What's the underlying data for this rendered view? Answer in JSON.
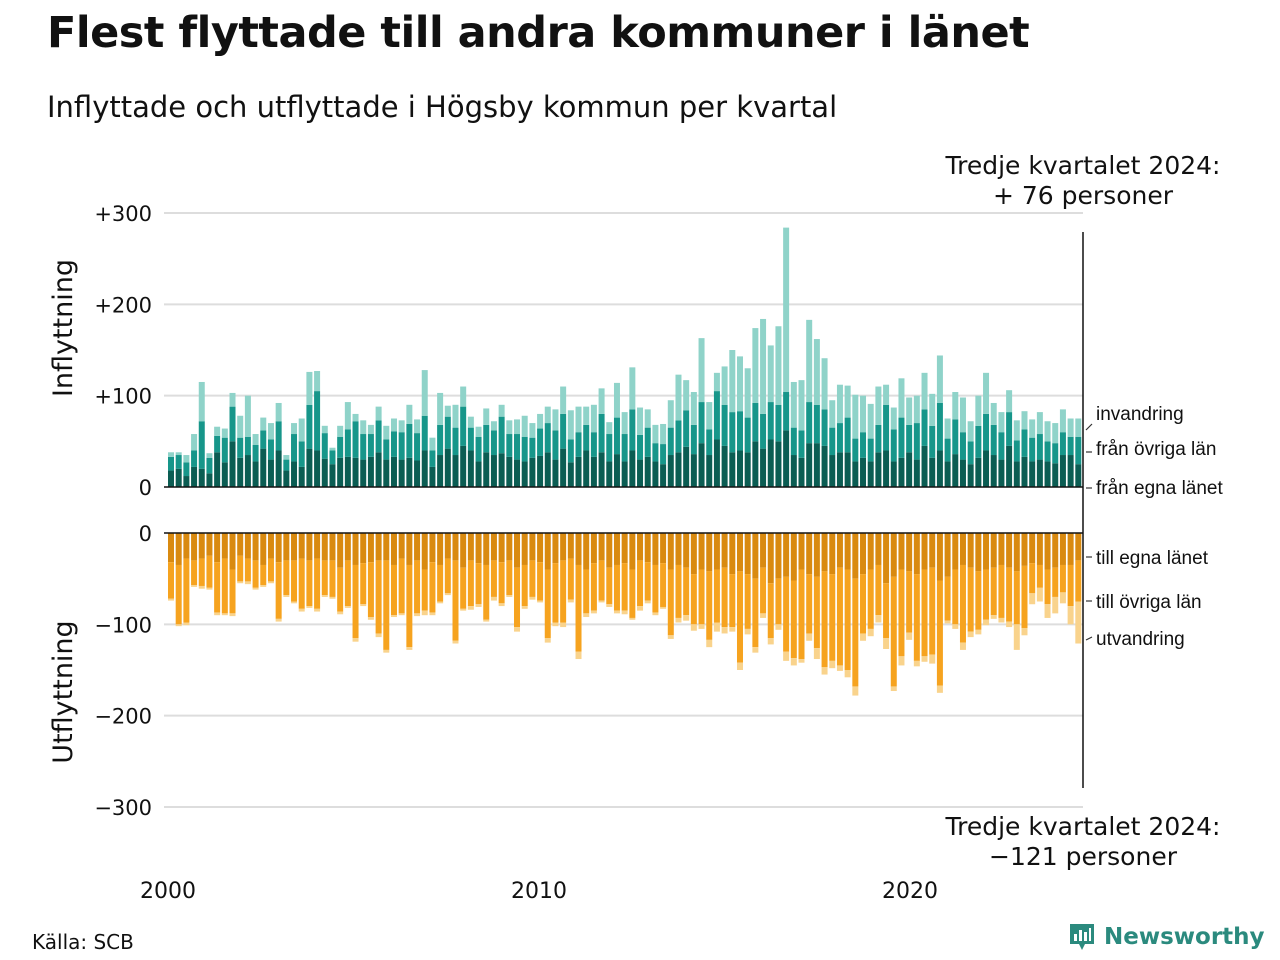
{
  "title": "Flest flyttade till andra kommuner i länet",
  "subtitle": "Inflyttade och utflyttade i Högsby kommun per kvartal",
  "source": "Källa: SCB",
  "brand": "Newsworthy",
  "brand_icon": "bar-chart-logo-icon",
  "colors": {
    "in_own": "#0b5d53",
    "in_other": "#17968a",
    "in_immig": "#8fd3c9",
    "out_own": "#d98a10",
    "out_other": "#f6a31f",
    "out_emig": "#f9d38c",
    "grid": "#dddddd"
  },
  "chart_data": {
    "type": "bar",
    "stacked": true,
    "diverging": true,
    "period": "quarterly",
    "x_ticks": [
      "2000",
      "2010",
      "2020"
    ],
    "top_panel": {
      "ylabel": "Inflyttning",
      "ylim": [
        0,
        300
      ],
      "y_ticks": [
        "0",
        "+100",
        "+200",
        "+300"
      ],
      "annotation_line1": "Tredje kvartalet 2024:",
      "annotation_line2": "+ 76 personer",
      "series": [
        {
          "name": "från egna länet",
          "values": [
            18,
            20,
            12,
            22,
            20,
            15,
            38,
            27,
            50,
            32,
            35,
            28,
            42,
            30,
            40,
            18,
            28,
            22,
            42,
            40,
            31,
            25,
            32,
            33,
            32,
            30,
            33,
            38,
            30,
            33,
            30,
            32,
            29,
            40,
            22,
            35,
            42,
            35,
            45,
            40,
            28,
            38,
            35,
            37,
            33,
            30,
            28,
            32,
            34,
            38,
            30,
            42,
            27,
            33,
            40,
            33,
            38,
            28,
            36,
            28,
            40,
            30,
            33,
            28,
            25,
            35,
            38,
            44,
            36,
            48,
            35,
            52,
            45,
            38,
            40,
            38,
            50,
            42,
            52,
            50,
            62,
            35,
            32,
            48,
            48,
            45,
            35,
            38,
            38,
            28,
            32,
            28,
            38,
            40,
            28,
            32,
            38,
            30,
            45,
            32,
            40,
            28,
            36,
            30,
            25,
            32,
            40,
            35,
            30,
            45,
            28,
            33,
            28,
            30,
            28,
            26,
            35,
            35,
            25
          ]
        },
        {
          "name": "från övriga län",
          "values": [
            15,
            15,
            15,
            18,
            52,
            17,
            18,
            27,
            38,
            22,
            20,
            18,
            20,
            22,
            32,
            12,
            30,
            28,
            48,
            65,
            28,
            15,
            23,
            30,
            40,
            28,
            25,
            35,
            22,
            28,
            30,
            37,
            30,
            38,
            18,
            33,
            35,
            30,
            43,
            25,
            27,
            30,
            27,
            40,
            25,
            28,
            27,
            22,
            30,
            32,
            32,
            38,
            25,
            27,
            28,
            27,
            42,
            30,
            40,
            30,
            45,
            27,
            32,
            20,
            22,
            30,
            35,
            40,
            32,
            45,
            28,
            53,
            45,
            44,
            43,
            38,
            42,
            38,
            41,
            40,
            42,
            30,
            30,
            45,
            42,
            40,
            30,
            32,
            38,
            25,
            28,
            25,
            30,
            50,
            35,
            44,
            30,
            40,
            40,
            35,
            52,
            25,
            38,
            30,
            25,
            35,
            40,
            33,
            30,
            37,
            23,
            30,
            26,
            28,
            22,
            22,
            25,
            20,
            30
          ]
        },
        {
          "name": "invandring",
          "values": [
            5,
            3,
            8,
            18,
            43,
            5,
            10,
            10,
            15,
            24,
            45,
            12,
            14,
            18,
            20,
            5,
            12,
            25,
            36,
            22,
            8,
            3,
            12,
            30,
            8,
            15,
            10,
            15,
            15,
            14,
            13,
            21,
            15,
            50,
            14,
            35,
            12,
            25,
            22,
            12,
            11,
            18,
            10,
            13,
            15,
            16,
            23,
            16,
            16,
            18,
            23,
            30,
            32,
            28,
            20,
            30,
            28,
            13,
            38,
            24,
            46,
            30,
            20,
            20,
            22,
            30,
            50,
            33,
            36,
            70,
            30,
            20,
            42,
            68,
            60,
            54,
            82,
            104,
            62,
            86,
            180,
            50,
            55,
            90,
            72,
            56,
            30,
            42,
            35,
            48,
            40,
            38,
            42,
            22,
            24,
            43,
            30,
            30,
            40,
            35,
            52,
            22,
            30,
            38,
            22,
            33,
            45,
            24,
            22,
            24,
            22,
            20,
            20,
            24,
            22,
            22,
            25,
            20,
            20
          ]
        }
      ]
    },
    "bottom_panel": {
      "ylabel": "Utflyttning",
      "ylim": [
        -300,
        0
      ],
      "y_ticks": [
        "0",
        "−100",
        "−200",
        "−300"
      ],
      "annotation_line1": "Tredje kvartalet 2024:",
      "annotation_line2": "−121 personer",
      "series": [
        {
          "name": "till egna länet",
          "values": [
            -32,
            -35,
            -28,
            -30,
            -28,
            -25,
            -32,
            -28,
            -40,
            -25,
            -28,
            -30,
            -35,
            -28,
            -32,
            -30,
            -30,
            -28,
            -30,
            -28,
            -30,
            -30,
            -38,
            -30,
            -35,
            -33,
            -32,
            -30,
            -30,
            -35,
            -28,
            -35,
            -30,
            -40,
            -32,
            -35,
            -28,
            -30,
            -38,
            -30,
            -33,
            -35,
            -30,
            -32,
            -30,
            -38,
            -35,
            -30,
            -32,
            -40,
            -33,
            -30,
            -28,
            -35,
            -40,
            -33,
            -30,
            -38,
            -35,
            -33,
            -40,
            -30,
            -32,
            -35,
            -33,
            -40,
            -35,
            -38,
            -45,
            -40,
            -42,
            -40,
            -38,
            -45,
            -42,
            -45,
            -50,
            -38,
            -55,
            -50,
            -48,
            -52,
            -40,
            -45,
            -48,
            -42,
            -45,
            -38,
            -40,
            -50,
            -45,
            -40,
            -35,
            -55,
            -48,
            -40,
            -42,
            -45,
            -40,
            -38,
            -52,
            -48,
            -40,
            -35,
            -38,
            -42,
            -40,
            -38,
            -35,
            -38,
            -42,
            -36,
            -33,
            -35,
            -40,
            -38,
            -35,
            -35,
            -30
          ]
        },
        {
          "name": "till övriga län",
          "values": [
            -40,
            -65,
            -70,
            -27,
            -30,
            -35,
            -55,
            -60,
            -48,
            -28,
            -25,
            -30,
            -22,
            -25,
            -62,
            -38,
            -45,
            -55,
            -50,
            -55,
            -38,
            -40,
            -48,
            -50,
            -80,
            -45,
            -60,
            -80,
            -98,
            -55,
            -60,
            -90,
            -58,
            -45,
            -55,
            -40,
            -38,
            -88,
            -45,
            -50,
            -45,
            -60,
            -40,
            -45,
            -38,
            -65,
            -45,
            -40,
            -42,
            -75,
            -65,
            -68,
            -45,
            -95,
            -48,
            -52,
            -44,
            -40,
            -50,
            -52,
            -53,
            -50,
            -42,
            -52,
            -48,
            -72,
            -58,
            -52,
            -55,
            -60,
            -75,
            -58,
            -65,
            -58,
            -100,
            -60,
            -75,
            -50,
            -60,
            -50,
            -82,
            -85,
            -98,
            -65,
            -78,
            -105,
            -95,
            -107,
            -110,
            -118,
            -65,
            -65,
            -55,
            -60,
            -120,
            -95,
            -67,
            -95,
            -95,
            -95,
            -115,
            -48,
            -60,
            -85,
            -70,
            -64,
            -55,
            -52,
            -58,
            -59,
            -58,
            -68,
            -33,
            -25,
            -38,
            -32,
            -30,
            -45,
            -45
          ]
        },
        {
          "name": "utvandring",
          "values": [
            -2,
            -2,
            -3,
            -2,
            -3,
            -2,
            -3,
            -2,
            -3,
            -2,
            -3,
            -2,
            -2,
            -2,
            -3,
            -2,
            -2,
            -3,
            -2,
            -3,
            -2,
            -2,
            -3,
            -2,
            -4,
            -2,
            -3,
            -4,
            -3,
            -2,
            -2,
            -3,
            -3,
            -5,
            -3,
            -2,
            -2,
            -3,
            -2,
            -4,
            -3,
            -2,
            -4,
            -3,
            -2,
            -5,
            -3,
            -3,
            -2,
            -5,
            -4,
            -5,
            -3,
            -8,
            -4,
            -3,
            -2,
            -3,
            -3,
            -4,
            -2,
            -5,
            -3,
            -3,
            -2,
            -4,
            -5,
            -6,
            -7,
            -5,
            -8,
            -10,
            -7,
            -5,
            -8,
            -6,
            -6,
            -5,
            -7,
            -6,
            -10,
            -8,
            -4,
            -8,
            -12,
            -8,
            -8,
            -6,
            -8,
            -10,
            -8,
            -8,
            -8,
            -12,
            -5,
            -10,
            -8,
            -6,
            -6,
            -10,
            -8,
            -3,
            -5,
            -8,
            -6,
            -5,
            -6,
            -4,
            -5,
            -6,
            -28,
            -8,
            -12,
            -15,
            -15,
            -18,
            -12,
            -20,
            -46
          ]
        }
      ]
    },
    "legend": [
      "invandring",
      "från övriga län",
      "från egna länet",
      "till egna länet",
      "till övriga län",
      "utvandring"
    ]
  }
}
